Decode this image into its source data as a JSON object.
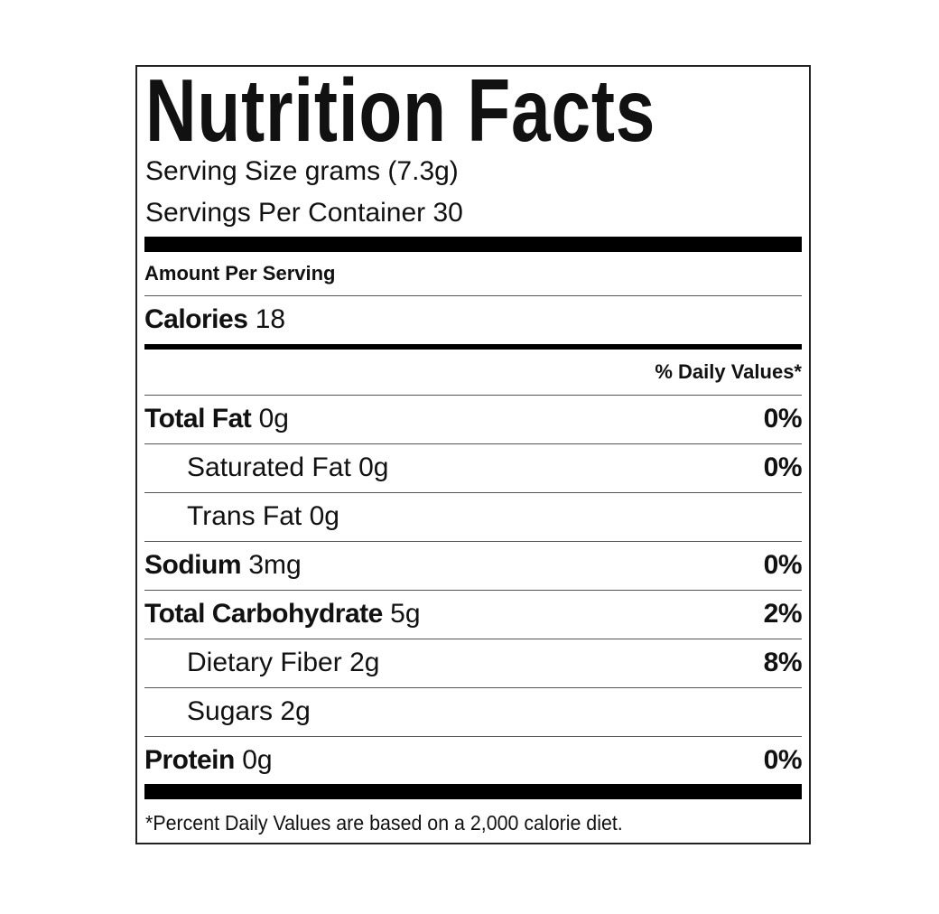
{
  "title": "Nutrition Facts",
  "serving_size": "Serving Size grams (7.3g)",
  "servings_per_container": "Servings Per Container 30",
  "amount_per_serving": "Amount Per Serving",
  "calories": {
    "label": "Calories",
    "value": "18"
  },
  "daily_values_header": "% Daily Values*",
  "nutrients": [
    {
      "label": "Total Fat",
      "amount": "0g",
      "dv": "0%",
      "bold": true
    },
    {
      "label": "Saturated Fat",
      "amount": "0g",
      "dv": "0%",
      "bold": false
    },
    {
      "label": "Trans Fat",
      "amount": "0g",
      "dv": "",
      "bold": false
    },
    {
      "label": "Sodium",
      "amount": "3mg",
      "dv": "0%",
      "bold": true
    },
    {
      "label": "Total Carbohydrate",
      "amount": "5g",
      "dv": "2%",
      "bold": true
    },
    {
      "label": "Dietary Fiber",
      "amount": "2g",
      "dv": "8%",
      "bold": false
    },
    {
      "label": "Sugars",
      "amount": "2g",
      "dv": "",
      "bold": false
    },
    {
      "label": "Protein",
      "amount": "0g",
      "dv": "0%",
      "bold": true
    }
  ],
  "footnote": "*Percent Daily Values are based on a 2,000 calorie diet."
}
